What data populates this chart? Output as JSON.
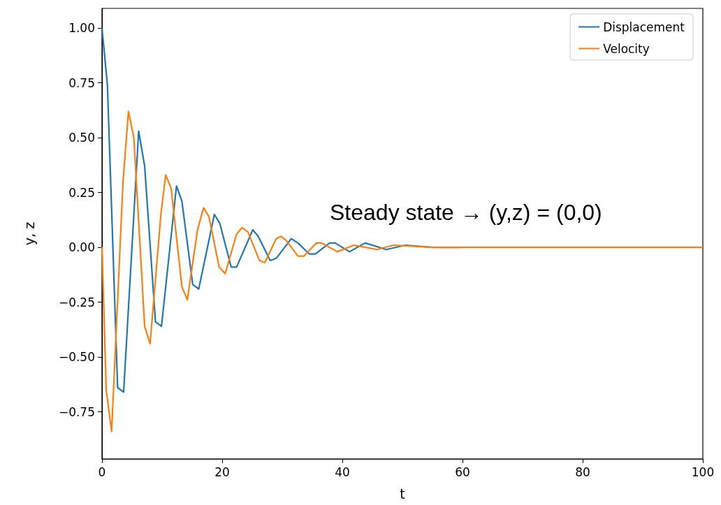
{
  "chart_data": {
    "type": "line",
    "xlabel": "t",
    "ylabel": "y, z",
    "annotations": [
      "Steady state → (y,z) = (0,0)"
    ],
    "xlim": [
      0,
      100
    ],
    "xticks": [
      0,
      20,
      40,
      60,
      80,
      100
    ],
    "ylim": [
      -0.965,
      1.09
    ],
    "yticks": [
      {
        "value": -0.75,
        "label": "−0.75"
      },
      {
        "value": -0.5,
        "label": "−0.50"
      },
      {
        "value": -0.25,
        "label": "−0.25"
      },
      {
        "value": 0,
        "label": "0.00"
      },
      {
        "value": 0.25,
        "label": "0.25"
      },
      {
        "value": 0.5,
        "label": "0.50"
      },
      {
        "value": 0.75,
        "label": "0.75"
      },
      {
        "value": 1,
        "label": "1.00"
      }
    ],
    "grid": false,
    "legend": "top right",
    "marker": "none",
    "line_style": "solid",
    "series": [
      {
        "name": "Displacement",
        "color": "#1f77b4",
        "x": [
          0,
          0.9,
          2.6,
          3.6,
          6.1,
          7.1,
          8.9,
          9.9,
          12.4,
          13.3,
          15.1,
          16.1,
          18.7,
          19.6,
          21.5,
          22.4,
          25.1,
          26.0,
          28.0,
          29.0,
          31.5,
          32.6,
          34.5,
          35.5,
          37.9,
          38.8,
          41.2,
          43.8,
          47.3,
          50.5,
          55,
          60
        ],
        "values": [
          1.0,
          0.74,
          -0.64,
          -0.66,
          0.53,
          0.37,
          -0.34,
          -0.36,
          0.28,
          0.21,
          -0.17,
          -0.19,
          0.15,
          0.11,
          -0.09,
          -0.09,
          0.08,
          0.05,
          -0.06,
          -0.05,
          0.04,
          0.02,
          -0.03,
          -0.03,
          0.02,
          0.02,
          -0.02,
          0.02,
          -0.01,
          0.01,
          0,
          0
        ]
      },
      {
        "name": "Velocity",
        "color": "#ff7f0e",
        "x": [
          0,
          0.7,
          1.6,
          3.5,
          4.4,
          5.3,
          7.1,
          8.0,
          9.8,
          10.6,
          11.5,
          13.3,
          14.2,
          15.9,
          16.9,
          17.8,
          19.5,
          20.5,
          22.4,
          23.3,
          24.3,
          26.2,
          27.1,
          29.0,
          29.8,
          30.7,
          32.6,
          33.6,
          35.7,
          36.5,
          39.2,
          41.9,
          45.8,
          48.5,
          55,
          60,
          70,
          80,
          90,
          100
        ],
        "values": [
          0,
          -0.65,
          -0.84,
          0.3,
          0.62,
          0.5,
          -0.36,
          -0.44,
          0.15,
          0.33,
          0.27,
          -0.18,
          -0.24,
          0.08,
          0.18,
          0.14,
          -0.09,
          -0.12,
          0.06,
          0.09,
          0.07,
          -0.06,
          -0.07,
          0.04,
          0.05,
          0.03,
          -0.04,
          -0.04,
          0.02,
          0.02,
          -0.02,
          0.01,
          -0.01,
          0.01,
          0,
          0,
          0,
          0,
          0,
          0
        ]
      }
    ]
  }
}
